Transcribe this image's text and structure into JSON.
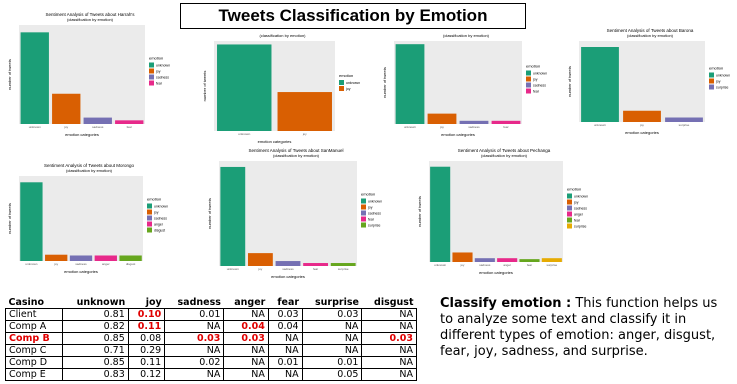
{
  "title": "Tweets Classification by Emotion",
  "chart_data": [
    {
      "type": "bar",
      "title": "Sentiment Analysis of Tweets about Harrah's",
      "subtitle": "(classification by emotion)",
      "x_label": "emotion categories",
      "y_label": "number of tweets",
      "legend_title": "emotion",
      "categories": [
        "unknown",
        "joy",
        "sadness",
        "fear"
      ],
      "values": [
        100,
        33,
        7,
        4
      ],
      "colors": [
        "#1b9e77",
        "#d95f02",
        "#7570b3",
        "#e7298a"
      ],
      "ylim": [
        0,
        108
      ]
    },
    {
      "type": "bar",
      "subtitle": "(classification by emotion)",
      "x_label": "emotion categories",
      "y_label": "number of tweets",
      "legend_title": "emotion",
      "categories": [
        "unknown",
        "joy"
      ],
      "values": [
        100,
        45
      ],
      "colors": [
        "#1b9e77",
        "#d95f02"
      ],
      "ylim": [
        0,
        104
      ]
    },
    {
      "type": "bar",
      "subtitle": "(classification by emotion)",
      "x_label": "emotion categories",
      "y_label": "number of tweets",
      "legend_title": "emotion",
      "categories": [
        "unknown",
        "joy",
        "sadness",
        "fear"
      ],
      "values": [
        100,
        13,
        4,
        4
      ],
      "colors": [
        "#1b9e77",
        "#d95f02",
        "#7570b3",
        "#e7298a"
      ],
      "ylim": [
        0,
        104
      ]
    },
    {
      "type": "bar",
      "title": "Sentiment Analysis of Tweets about Barona",
      "subtitle": "(classification by emotion)",
      "x_label": "emotion categories",
      "y_label": "number of tweets",
      "legend_title": "emotion",
      "categories": [
        "unknown",
        "joy",
        "surprise"
      ],
      "values": [
        100,
        15,
        6
      ],
      "colors": [
        "#1b9e77",
        "#d95f02",
        "#7570b3"
      ],
      "ylim": [
        0,
        108
      ]
    },
    {
      "type": "bar",
      "title": "Sentiment Analysis of Tweets about Morongo",
      "subtitle": "(classification by emotion)",
      "x_label": "emotion categories",
      "y_label": "number of tweets",
      "legend_title": "emotion",
      "categories": [
        "unknown",
        "joy",
        "sadness",
        "anger",
        "disgust"
      ],
      "values": [
        100,
        8,
        7,
        7,
        7
      ],
      "colors": [
        "#1b9e77",
        "#d95f02",
        "#7570b3",
        "#e7298a",
        "#66a61e"
      ],
      "ylim": [
        0,
        108
      ]
    },
    {
      "type": "bar",
      "title": "Sentiment Analysis of Tweets about SanManuel",
      "subtitle": "(classification by emotion)",
      "x_label": "emotion categories",
      "y_label": "number of tweets",
      "legend_title": "emotion",
      "categories": [
        "unknown",
        "joy",
        "sadness",
        "fear",
        "surprise"
      ],
      "values": [
        100,
        13,
        5,
        3,
        3
      ],
      "colors": [
        "#1b9e77",
        "#d95f02",
        "#7570b3",
        "#e7298a",
        "#66a61e"
      ],
      "ylim": [
        0,
        106
      ]
    },
    {
      "type": "bar",
      "title": "Sentiment Analysis of Tweets about Pechanga",
      "subtitle": "(classification by emotion)",
      "x_label": "emotion categories",
      "y_label": "number of tweets",
      "legend_title": "emotion",
      "categories": [
        "unknown",
        "joy",
        "sadness",
        "anger",
        "fear",
        "surprise"
      ],
      "values": [
        100,
        10,
        4,
        4,
        3,
        4
      ],
      "colors": [
        "#1b9e77",
        "#d95f02",
        "#7570b3",
        "#e7298a",
        "#66a61e",
        "#e6ab02"
      ],
      "ylim": [
        0,
        106
      ]
    }
  ],
  "table": {
    "header": [
      "Casino",
      "unknown",
      "joy",
      "sadness",
      "anger",
      "fear",
      "surprise",
      "disgust"
    ],
    "rows": [
      [
        "Client",
        "0.81",
        "0.10",
        "0.01",
        "NA",
        "0.03",
        "0.03",
        "NA"
      ],
      [
        "Comp A",
        "0.82",
        "0.11",
        "NA",
        "0.04",
        "0.04",
        "NA",
        "NA"
      ],
      [
        "Comp B",
        "0.85",
        "0.08",
        "0.03",
        "0.03",
        "NA",
        "NA",
        "0.03"
      ],
      [
        "Comp C",
        "0.71",
        "0.29",
        "NA",
        "NA",
        "NA",
        "NA",
        "NA"
      ],
      [
        "Comp D",
        "0.85",
        "0.11",
        "0.02",
        "NA",
        "0.01",
        "0.01",
        "NA"
      ],
      [
        "Comp E",
        "0.83",
        "0.12",
        "NA",
        "NA",
        "NA",
        "0.05",
        "NA"
      ]
    ],
    "highlight_color": "#e00000",
    "highlighted_cells": [
      [
        0,
        2
      ],
      [
        1,
        2
      ],
      [
        1,
        4
      ],
      [
        2,
        0
      ],
      [
        2,
        3
      ],
      [
        2,
        4
      ],
      [
        2,
        7
      ]
    ]
  },
  "note": {
    "label": "Classify emotion :",
    "text": " This function helps us to analyze some text and classify it in different types of emotion: anger, disgust, fear, joy, sadness, and surprise."
  }
}
